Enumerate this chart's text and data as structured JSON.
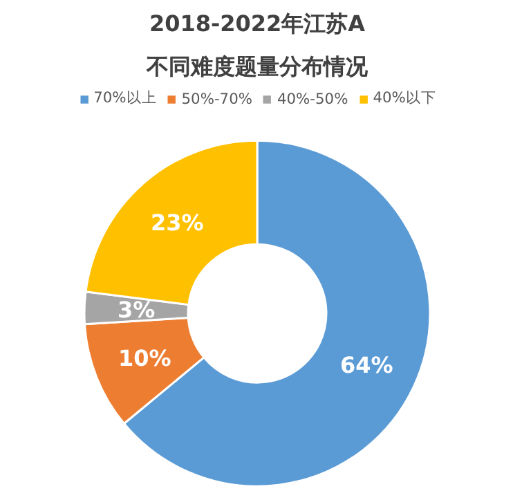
{
  "chart_data": {
    "type": "donut",
    "title": "2018-2022年江苏A",
    "subtitle": "不同难度题量分布情况",
    "categories": [
      "70%以上",
      "50%-70%",
      "40%-50%",
      "40%以下"
    ],
    "values": [
      64,
      10,
      3,
      23
    ],
    "colors": [
      "#5b9bd5",
      "#ed7d31",
      "#a5a5a5",
      "#ffc000"
    ],
    "value_labels": [
      "64%",
      "10%",
      "3%",
      "23%"
    ],
    "legend": "top"
  }
}
